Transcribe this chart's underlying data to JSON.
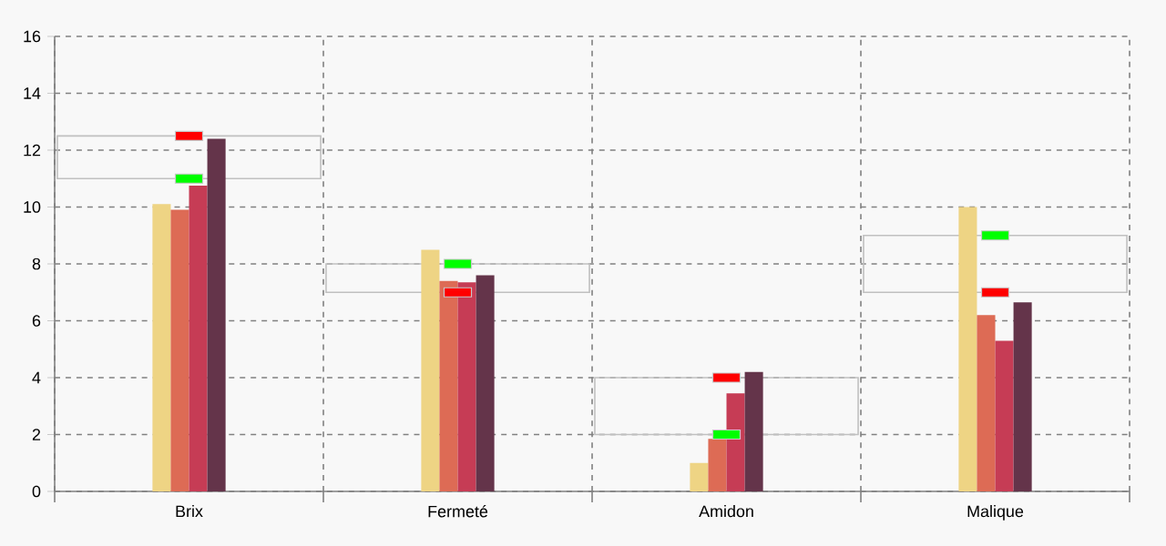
{
  "chart_data": {
    "type": "bar",
    "categories": [
      "Brix",
      "Fermeté",
      "Amidon",
      "Malique"
    ],
    "ylim": [
      0,
      16
    ],
    "yticks": [
      0,
      2,
      4,
      6,
      8,
      10,
      12,
      14,
      16
    ],
    "grid": true,
    "series": [
      {
        "color": "#eed484",
        "values": [
          10.1,
          8.5,
          1.0,
          10.0
        ]
      },
      {
        "color": "#dd6b55",
        "values": [
          9.9,
          7.4,
          1.85,
          6.2
        ]
      },
      {
        "color": "#c63c55",
        "values": [
          10.75,
          7.35,
          3.45,
          5.3
        ]
      },
      {
        "color": "#64344a",
        "values": [
          12.4,
          7.6,
          4.2,
          6.65
        ]
      },
      {
        "type": "bar",
        "color": "#c0c0c0",
        "base": [
          11,
          7,
          2,
          7
        ],
        "values": [
          1.5,
          1,
          2,
          2
        ]
      },
      {
        "type": "scatter",
        "color": "#00ff00",
        "values": [
          11,
          8,
          2,
          9
        ]
      },
      {
        "type": "scatter",
        "color": "#ff0000",
        "values": [
          12.5,
          7,
          4,
          7
        ]
      }
    ]
  }
}
